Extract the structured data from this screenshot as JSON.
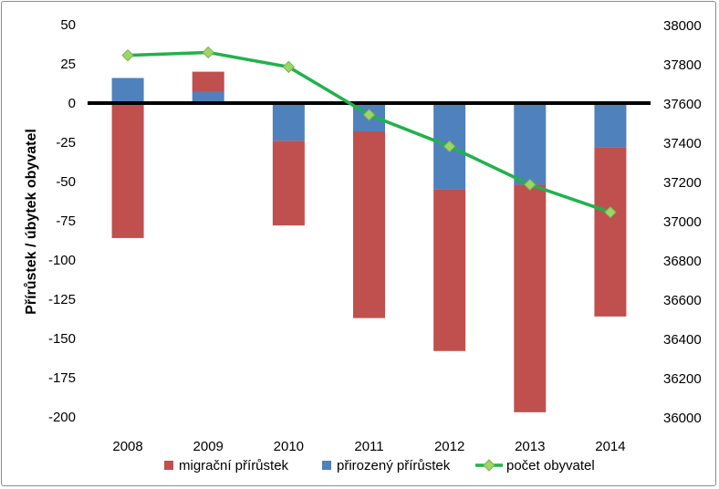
{
  "chart_data": {
    "type": "bar",
    "categories": [
      "2008",
      "2009",
      "2010",
      "2011",
      "2012",
      "2013",
      "2014"
    ],
    "series": [
      {
        "name": "migrační přírůstek",
        "type": "stacked-bar",
        "axis": "left",
        "color": "#c0504d",
        "values": [
          -86,
          13,
          -54,
          -119,
          -103,
          -145,
          -108
        ]
      },
      {
        "name": "přirozený přírůstek",
        "type": "stacked-bar",
        "axis": "left",
        "color": "#4f81bd",
        "values": [
          16,
          7,
          -24,
          -18,
          -55,
          -52,
          -28
        ]
      },
      {
        "name": "počet obyvatel",
        "type": "line",
        "axis": "right",
        "color": "#22b14c",
        "marker_color": "#9bd66b",
        "values": [
          37848,
          37863,
          37789,
          37545,
          37384,
          37189,
          37048
        ]
      }
    ],
    "ylabel": "Přírůstek / úbytek obyvatel",
    "ylim": [
      -200,
      50
    ],
    "yticks": [
      "50",
      "25",
      "0",
      "-25",
      "-50",
      "-75",
      "-100",
      "-125",
      "-150",
      "-175",
      "-200"
    ],
    "y2lim": [
      36000,
      38000
    ],
    "y2ticks": [
      "38000",
      "37800",
      "37600",
      "37400",
      "37200",
      "37000",
      "36800",
      "36600",
      "36400",
      "36200",
      "36000"
    ],
    "grid": false,
    "legend_position": "bottom",
    "legend": [
      "migrační přírůstek",
      "přirozený přírůstek",
      "počet obyvatel"
    ]
  }
}
